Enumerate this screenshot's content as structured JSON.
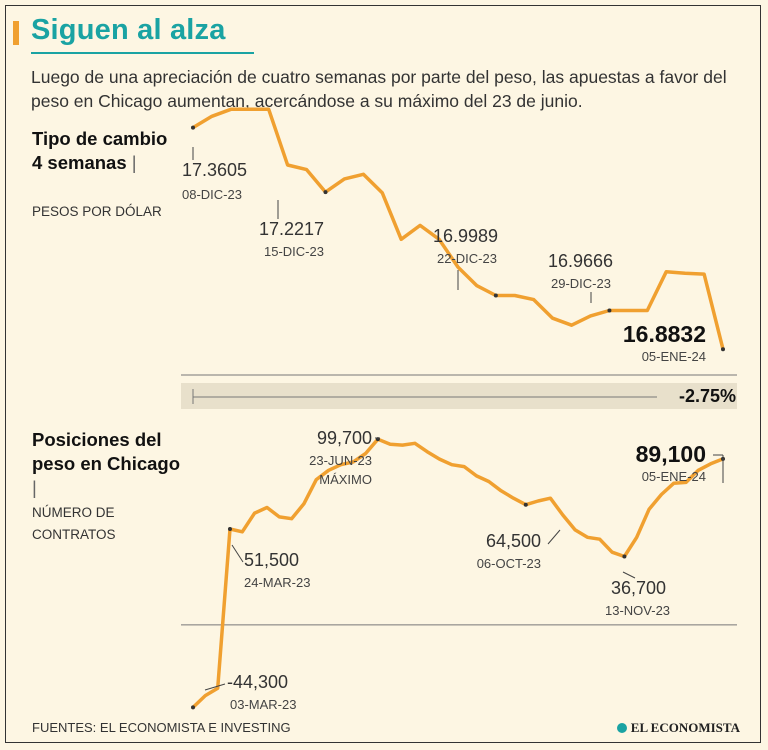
{
  "header": {
    "title": "Siguen al alza",
    "subtitle": "Luego de una apreciación de cuatro semanas por parte del peso, las apuestas a favor del peso en Chicago aumentan, acercándose a su máximo del 23 de junio."
  },
  "colors": {
    "line": "#f0a030",
    "title": "#1aa3a3",
    "text": "#222222"
  },
  "chart_data": [
    {
      "type": "line",
      "title": "Tipo de cambio 4 semanas",
      "ylabel": "PESOS POR DÓLAR",
      "ylim": [
        16.86,
        17.42
      ],
      "values": [
        17.3605,
        17.385,
        17.4,
        17.4,
        17.4,
        17.28,
        17.27,
        17.2217,
        17.25,
        17.26,
        17.22,
        17.12,
        17.15,
        17.12,
        17.06,
        17.02,
        16.9989,
        16.9989,
        16.99,
        16.95,
        16.935,
        16.955,
        16.9666,
        16.9666,
        16.9666,
        17.05,
        17.047,
        17.045,
        16.8832
      ],
      "points": [
        {
          "index": 0,
          "value": "17.3605",
          "date": "08-DIC-23"
        },
        {
          "index": 7,
          "value": "17.2217",
          "date": "15-DIC-23"
        },
        {
          "index": 16,
          "value": "16.9989",
          "date": "22-DIC-23"
        },
        {
          "index": 22,
          "value": "16.9666",
          "date": "29-DIC-23"
        },
        {
          "index": 28,
          "value": "16.8832",
          "date": "05-ENE-24"
        }
      ],
      "change": "-2.75%"
    },
    {
      "type": "line",
      "title": "Posiciones del peso en Chicago",
      "ylabel": "NÚMERO DE CONTRATOS",
      "ylim": [
        -50000,
        110000
      ],
      "values": [
        -44300,
        -38000,
        -34000,
        51500,
        50000,
        60000,
        63000,
        58000,
        57000,
        65000,
        78000,
        83000,
        86000,
        87500,
        92000,
        99700,
        97000,
        96500,
        97500,
        93000,
        89000,
        86000,
        85000,
        80000,
        77000,
        72000,
        68000,
        64500,
        66500,
        68000,
        59000,
        51000,
        47000,
        46000,
        39000,
        36700,
        47000,
        62000,
        70000,
        76000,
        76500,
        83000,
        86500,
        89100
      ],
      "annotations": [
        {
          "index": 0,
          "value": "-44,300",
          "date": "03-MAR-23"
        },
        {
          "index": 3,
          "value": "51,500",
          "date": "24-MAR-23"
        },
        {
          "index": 15,
          "value": "99,700",
          "date": "23-JUN-23",
          "note": "MÁXIMO"
        },
        {
          "index": 27,
          "value": "64,500",
          "date": "06-OCT-23"
        },
        {
          "index": 35,
          "value": "36,700",
          "date": "13-NOV-23"
        },
        {
          "index": 43,
          "value": "89,100",
          "date": "05-ENE-24"
        }
      ]
    }
  ],
  "sections": {
    "fx": {
      "title": "Tipo de cambio 4 semanas",
      "unit": "PESOS POR DÓLAR"
    },
    "chicago": {
      "title": "Posiciones del peso en Chicago",
      "unit": "NÚMERO DE CONTRATOS"
    }
  },
  "footer": {
    "source": "FUENTES: EL ECONOMISTA E INVESTING",
    "brand": "EL ECONOMISTA"
  }
}
